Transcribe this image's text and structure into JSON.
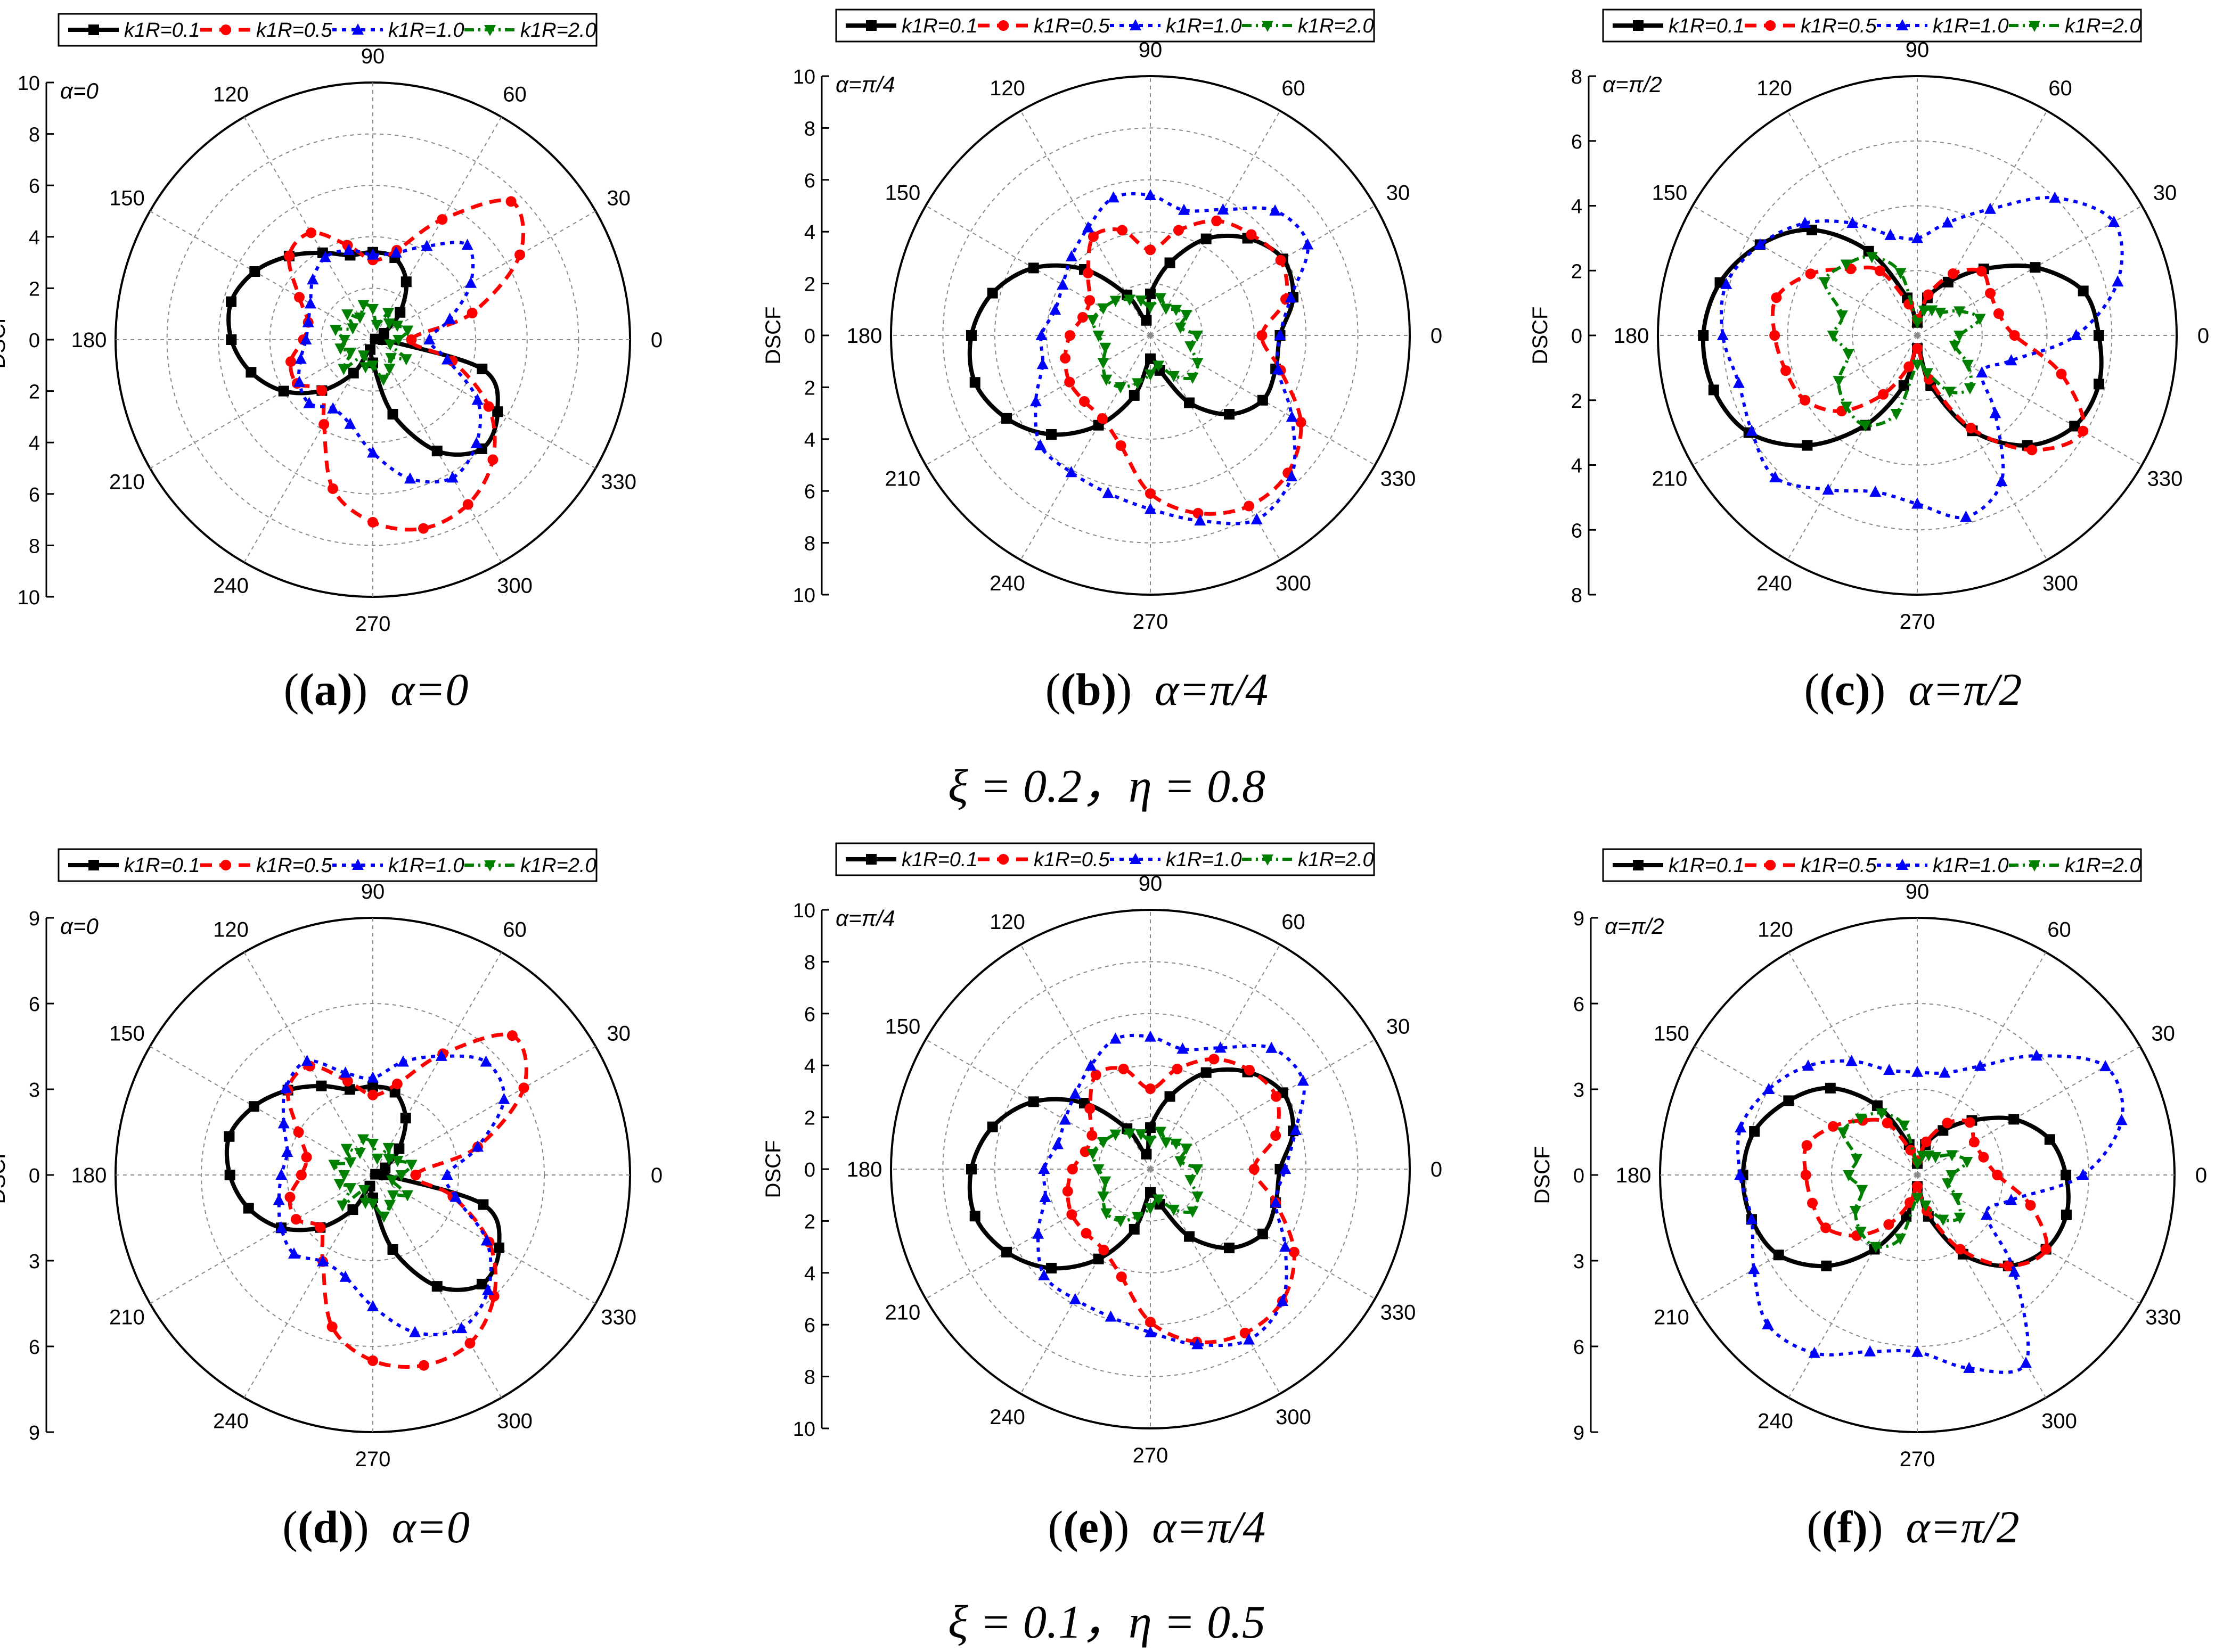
{
  "legend_labels": [
    "k1R=0.1",
    "k1R=0.5",
    "k1R=1.0",
    "k1R=2.0"
  ],
  "series_colors": [
    "#000000",
    "#ff0000",
    "#0000ff",
    "#008000"
  ],
  "series_markers": [
    "square",
    "circle",
    "triangle-up",
    "triangle-down"
  ],
  "ylabel": "DSCF",
  "angle_ticks": [
    "0",
    "30",
    "60",
    "90",
    "120",
    "150",
    "180",
    "210",
    "240",
    "270",
    "300",
    "330"
  ],
  "group_captions": [
    "ξ = 0.2，η = 0.8",
    "ξ = 0.1，η = 0.5"
  ],
  "chart_data": [
    {
      "type": "polar-line",
      "panel": "(a)",
      "alpha_label": "α=0",
      "caption_label": "(a)",
      "caption_text": "α=0",
      "rmax": 10,
      "radial_ticks": [
        0,
        2,
        4,
        6,
        8,
        10
      ],
      "grid": true,
      "legend": "top",
      "theta_deg": [
        0,
        15,
        30,
        45,
        60,
        75,
        90,
        105,
        120,
        135,
        150,
        165,
        180,
        195,
        210,
        225,
        240,
        255,
        270,
        285,
        300,
        315,
        330,
        345
      ],
      "series": [
        {
          "name": "k1R=0.1",
          "values": [
            0.4,
            0.1,
            0.5,
            1.5,
            2.6,
            3.3,
            3.4,
            3.4,
            3.9,
            4.6,
            5.3,
            5.7,
            5.5,
            4.9,
            4.0,
            2.8,
            1.5,
            0.4,
            0.9,
            3.0,
            5.0,
            6.0,
            5.6,
            4.4
          ]
        },
        {
          "name": "k1R=0.5",
          "values": [
            1.5,
            4.0,
            6.6,
            7.6,
            5.4,
            3.6,
            3.1,
            3.8,
            4.8,
            4.6,
            3.3,
            2.6,
            2.7,
            3.3,
            3.4,
            2.8,
            3.8,
            6.0,
            7.1,
            7.6,
            7.4,
            6.6,
            5.2,
            3.2
          ]
        },
        {
          "name": "k1R=1.0",
          "values": [
            2.2,
            3.1,
            4.4,
            5.2,
            4.2,
            3.5,
            3.3,
            3.6,
            3.7,
            3.3,
            2.8,
            2.6,
            2.6,
            2.9,
            3.3,
            3.5,
            3.1,
            3.4,
            4.4,
            5.6,
            6.2,
            5.7,
            4.7,
            3.0
          ]
        },
        {
          "name": "k1R=2.0",
          "values": [
            1.0,
            1.4,
            1.1,
            0.9,
            1.2,
            0.6,
            1.2,
            1.4,
            1.0,
            1.4,
            0.9,
            1.5,
            1.1,
            1.3,
            1.0,
            1.6,
            0.7,
            1.1,
            1.0,
            1.6,
            1.3,
            1.0,
            1.5,
            0.7
          ]
        }
      ]
    },
    {
      "type": "polar-line",
      "panel": "(b)",
      "alpha_label": "α=π/4",
      "caption_label": "(b)",
      "caption_text": "α=π/4",
      "rmax": 10,
      "radial_ticks": [
        0,
        2,
        4,
        6,
        8,
        10
      ],
      "grid": true,
      "legend": "top",
      "theta_deg": [
        0,
        15,
        30,
        45,
        60,
        75,
        90,
        105,
        120,
        135,
        150,
        165,
        180,
        195,
        210,
        225,
        240,
        255,
        270,
        285,
        300,
        315,
        330,
        345
      ],
      "series": [
        {
          "name": "k1R=0.1",
          "values": [
            5.0,
            5.7,
            5.9,
            5.3,
            4.3,
            2.9,
            1.6,
            0.6,
            1.8,
            3.6,
            5.2,
            6.3,
            6.9,
            7.0,
            6.4,
            5.4,
            4.0,
            2.4,
            0.9,
            1.4,
            3.0,
            4.3,
            5.0,
            5.0
          ]
        },
        {
          "name": "k1R=0.5",
          "values": [
            4.3,
            5.4,
            5.8,
            5.5,
            5.1,
            4.2,
            3.3,
            4.2,
            4.4,
            3.4,
            2.7,
            2.7,
            3.1,
            3.4,
            3.6,
            3.6,
            3.7,
            4.4,
            6.1,
            7.1,
            7.6,
            7.5,
            6.7,
            5.2
          ]
        },
        {
          "name": "k1R=1.0",
          "values": [
            5.0,
            5.6,
            7.0,
            6.8,
            5.6,
            5.0,
            5.4,
            5.5,
            4.8,
            4.3,
            3.9,
            3.8,
            4.2,
            4.3,
            5.1,
            6.0,
            6.1,
            6.3,
            6.7,
            7.4,
            8.2,
            7.7,
            6.3,
            5.1
          ]
        },
        {
          "name": "k1R=2.0",
          "values": [
            1.8,
            1.2,
            1.6,
            1.4,
            1.2,
            1.5,
            1.1,
            1.4,
            1.6,
            1.9,
            2.1,
            2.3,
            2.0,
            1.8,
            2.1,
            2.4,
            2.3,
            1.9,
            1.5,
            1.2,
            1.8,
            2.3,
            2.1,
            1.6
          ]
        }
      ]
    },
    {
      "type": "polar-line",
      "panel": "(c)",
      "alpha_label": "α=π/2",
      "caption_label": "(c)",
      "caption_text": "α=π/2",
      "rmax": 8,
      "radial_ticks": [
        0,
        2,
        4,
        6,
        8
      ],
      "grid": true,
      "legend": "top",
      "theta_deg": [
        0,
        15,
        30,
        45,
        60,
        75,
        90,
        105,
        120,
        135,
        150,
        165,
        180,
        195,
        210,
        225,
        240,
        255,
        270,
        285,
        300,
        315,
        330,
        345
      ],
      "series": [
        {
          "name": "k1R=0.1",
          "values": [
            5.6,
            5.3,
            4.2,
            2.9,
            1.9,
            1.2,
            0.4,
            1.2,
            3.0,
            4.6,
            5.6,
            6.3,
            6.6,
            6.5,
            6.0,
            4.8,
            3.2,
            1.6,
            0.4,
            1.6,
            3.4,
            4.8,
            5.6,
            5.8
          ]
        },
        {
          "name": "k1R=0.5",
          "values": [
            3.0,
            2.6,
            2.6,
            2.8,
            2.2,
            1.3,
            0.5,
            1.0,
            2.3,
            2.9,
            3.8,
            4.5,
            4.4,
            4.2,
            4.0,
            3.3,
            2.1,
            1.0,
            0.4,
            1.4,
            3.3,
            5.0,
            5.9,
            4.6
          ]
        },
        {
          "name": "k1R=1.0",
          "values": [
            4.9,
            6.4,
            7.0,
            6.0,
            4.5,
            3.6,
            3.0,
            3.2,
            4.0,
            4.9,
            5.6,
            6.1,
            6.0,
            5.7,
            5.9,
            6.2,
            5.5,
            5.0,
            5.2,
            5.8,
            5.2,
            3.4,
            2.3,
            3.0
          ]
        },
        {
          "name": "k1R=2.0",
          "values": [
            1.3,
            2.0,
            1.5,
            1.0,
            0.9,
            0.8,
            0.4,
            2.0,
            2.8,
            3.1,
            3.3,
            2.4,
            2.6,
            2.2,
            2.8,
            3.1,
            3.2,
            2.5,
            0.9,
            1.2,
            2.0,
            2.3,
            1.8,
            1.2
          ]
        }
      ]
    },
    {
      "type": "polar-line",
      "panel": "(d)",
      "alpha_label": "α=0",
      "caption_label": "(d)",
      "caption_text": "α=0",
      "rmax": 9,
      "radial_ticks": [
        0,
        3,
        6,
        9
      ],
      "grid": true,
      "legend": "top",
      "theta_deg": [
        0,
        15,
        30,
        45,
        60,
        75,
        90,
        105,
        120,
        135,
        150,
        165,
        180,
        195,
        210,
        225,
        240,
        255,
        270,
        285,
        300,
        315,
        330,
        345
      ],
      "series": [
        {
          "name": "k1R=0.1",
          "values": [
            0.4,
            0.1,
            0.5,
            1.3,
            2.3,
            3.0,
            3.1,
            3.1,
            3.6,
            4.2,
            4.8,
            5.2,
            5.0,
            4.5,
            3.7,
            2.6,
            1.4,
            0.4,
            0.8,
            2.7,
            4.5,
            5.4,
            5.1,
            4.0
          ]
        },
        {
          "name": "k1R=0.5",
          "values": [
            1.5,
            3.8,
            6.1,
            6.9,
            4.9,
            3.3,
            2.8,
            3.4,
            4.4,
            4.2,
            3.0,
            2.4,
            2.5,
            3.0,
            3.1,
            2.6,
            3.5,
            5.5,
            6.5,
            6.9,
            6.8,
            6.0,
            4.7,
            2.9
          ]
        },
        {
          "name": "k1R=1.0",
          "values": [
            2.6,
            3.8,
            5.3,
            5.6,
            4.8,
            4.1,
            3.4,
            3.7,
            4.6,
            4.3,
            3.6,
            3.1,
            3.2,
            3.4,
            3.7,
            3.9,
            3.5,
            3.7,
            4.6,
            5.7,
            6.2,
            5.7,
            4.6,
            3.0
          ]
        },
        {
          "name": "k1R=2.0",
          "values": [
            1.0,
            1.4,
            1.0,
            0.8,
            1.1,
            0.6,
            1.1,
            1.3,
            0.9,
            1.3,
            0.9,
            1.4,
            1.0,
            1.2,
            0.9,
            1.5,
            0.6,
            1.0,
            1.0,
            1.5,
            1.2,
            1.0,
            1.4,
            0.7
          ]
        }
      ]
    },
    {
      "type": "polar-line",
      "panel": "(e)",
      "alpha_label": "α=π/4",
      "caption_label": "(e)",
      "caption_text": "α=π/4",
      "rmax": 10,
      "radial_ticks": [
        0,
        2,
        4,
        6,
        8,
        10
      ],
      "grid": true,
      "legend": "top",
      "theta_deg": [
        0,
        15,
        30,
        45,
        60,
        75,
        90,
        105,
        120,
        135,
        150,
        165,
        180,
        195,
        210,
        225,
        240,
        255,
        270,
        285,
        300,
        315,
        330,
        345
      ],
      "series": [
        {
          "name": "k1R=0.1",
          "values": [
            5.0,
            5.7,
            5.9,
            5.3,
            4.3,
            2.9,
            1.6,
            0.6,
            1.8,
            3.6,
            5.2,
            6.3,
            6.9,
            7.0,
            6.4,
            5.4,
            4.0,
            2.4,
            0.9,
            1.4,
            3.0,
            4.3,
            5.0,
            5.0
          ]
        },
        {
          "name": "k1R=0.5",
          "values": [
            4.0,
            5.0,
            5.6,
            5.4,
            4.9,
            4.0,
            3.1,
            4.0,
            4.2,
            3.3,
            2.6,
            2.6,
            3.0,
            3.3,
            3.5,
            3.5,
            3.6,
            4.3,
            5.9,
            6.9,
            7.3,
            7.2,
            6.4,
            5.0
          ]
        },
        {
          "name": "k1R=1.0",
          "values": [
            5.2,
            5.8,
            6.8,
            6.6,
            5.4,
            4.8,
            5.1,
            5.2,
            4.6,
            4.1,
            3.8,
            3.7,
            4.1,
            4.2,
            5.0,
            5.8,
            5.8,
            5.9,
            6.3,
            7.0,
            7.6,
            7.2,
            6.0,
            5.0
          ]
        },
        {
          "name": "k1R=2.0",
          "values": [
            1.8,
            1.2,
            1.6,
            1.4,
            1.2,
            1.5,
            1.1,
            1.4,
            1.6,
            1.9,
            2.1,
            2.3,
            2.0,
            1.8,
            2.1,
            2.4,
            2.3,
            1.9,
            1.5,
            1.2,
            1.8,
            2.3,
            2.1,
            1.6
          ]
        }
      ]
    },
    {
      "type": "polar-line",
      "panel": "(f)",
      "alpha_label": "α=π/2",
      "caption_label": "(f)",
      "caption_text": "α=π/2",
      "rmax": 9,
      "radial_ticks": [
        0,
        3,
        6,
        9
      ],
      "grid": true,
      "legend": "top",
      "theta_deg": [
        0,
        15,
        30,
        45,
        60,
        75,
        90,
        105,
        120,
        135,
        150,
        165,
        180,
        195,
        210,
        225,
        240,
        255,
        270,
        285,
        300,
        315,
        330,
        345
      ],
      "series": [
        {
          "name": "k1R=0.1",
          "values": [
            5.2,
            4.8,
            3.9,
            2.7,
            1.8,
            1.1,
            0.4,
            1.1,
            2.8,
            4.3,
            5.2,
            5.9,
            6.1,
            6.0,
            5.6,
            4.5,
            3.0,
            1.5,
            0.4,
            1.5,
            3.2,
            4.5,
            5.2,
            5.4
          ]
        },
        {
          "name": "k1R=0.5",
          "values": [
            2.8,
            2.4,
            2.3,
            2.6,
            2.1,
            1.2,
            0.5,
            0.9,
            2.1,
            2.7,
            3.4,
            4.0,
            3.9,
            3.8,
            3.7,
            3.0,
            2.0,
            1.0,
            0.4,
            1.3,
            3.0,
            4.5,
            5.2,
            4.1
          ]
        },
        {
          "name": "k1R=1.0",
          "values": [
            5.8,
            7.4,
            7.6,
            5.9,
            4.4,
            3.7,
            3.6,
            3.8,
            4.6,
            5.4,
            6.0,
            6.4,
            6.2,
            6.0,
            6.6,
            7.4,
            7.2,
            6.4,
            6.2,
            7.0,
            7.6,
            4.8,
            2.8,
            3.4
          ]
        },
        {
          "name": "k1R=2.0",
          "values": [
            1.2,
            1.8,
            1.4,
            0.9,
            0.8,
            0.7,
            0.4,
            1.8,
            2.5,
            2.8,
            3.0,
            2.2,
            2.4,
            2.0,
            2.5,
            2.8,
            2.9,
            2.3,
            0.8,
            1.1,
            1.8,
            2.1,
            1.6,
            1.1
          ]
        }
      ]
    }
  ]
}
